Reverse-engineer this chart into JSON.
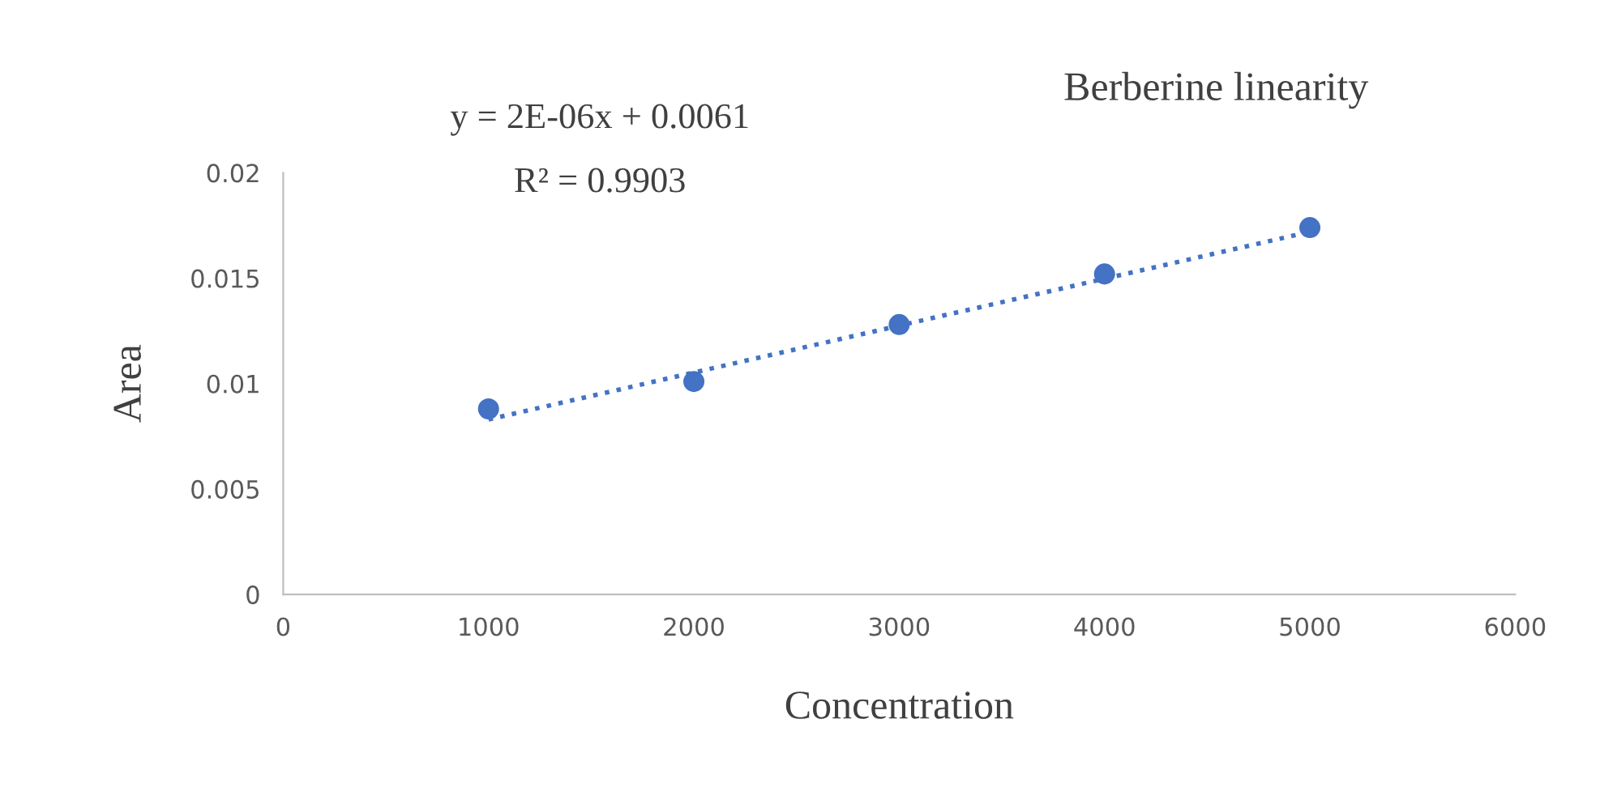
{
  "chart_data": {
    "type": "scatter",
    "title": "Berberine linearity",
    "xlabel": "Concentration",
    "ylabel": "Area",
    "x": [
      1000,
      2000,
      3000,
      4000,
      5000
    ],
    "series": [
      {
        "color": "#4472c4",
        "values": [
          0.0088,
          0.0101,
          0.0128,
          0.0152,
          0.0174
        ],
        "marker": "circle"
      },
      {
        "type": "line",
        "color": "#4472c4",
        "x": [
          1000,
          5000
        ],
        "values": [
          0.0083,
          0.0172
        ],
        "line_style": "dotted",
        "marker": "none"
      }
    ],
    "annotations": [
      "y = 2E-06x + 0.0061",
      "R² = 0.9903"
    ],
    "xlim": [
      0,
      6000
    ],
    "xticks": [
      0,
      1000,
      2000,
      3000,
      4000,
      5000,
      6000
    ],
    "ylim": [
      0,
      0.02
    ],
    "yticks": [
      0,
      0.005,
      0.01,
      0.015,
      0.02
    ],
    "grid": false,
    "legend": false
  }
}
